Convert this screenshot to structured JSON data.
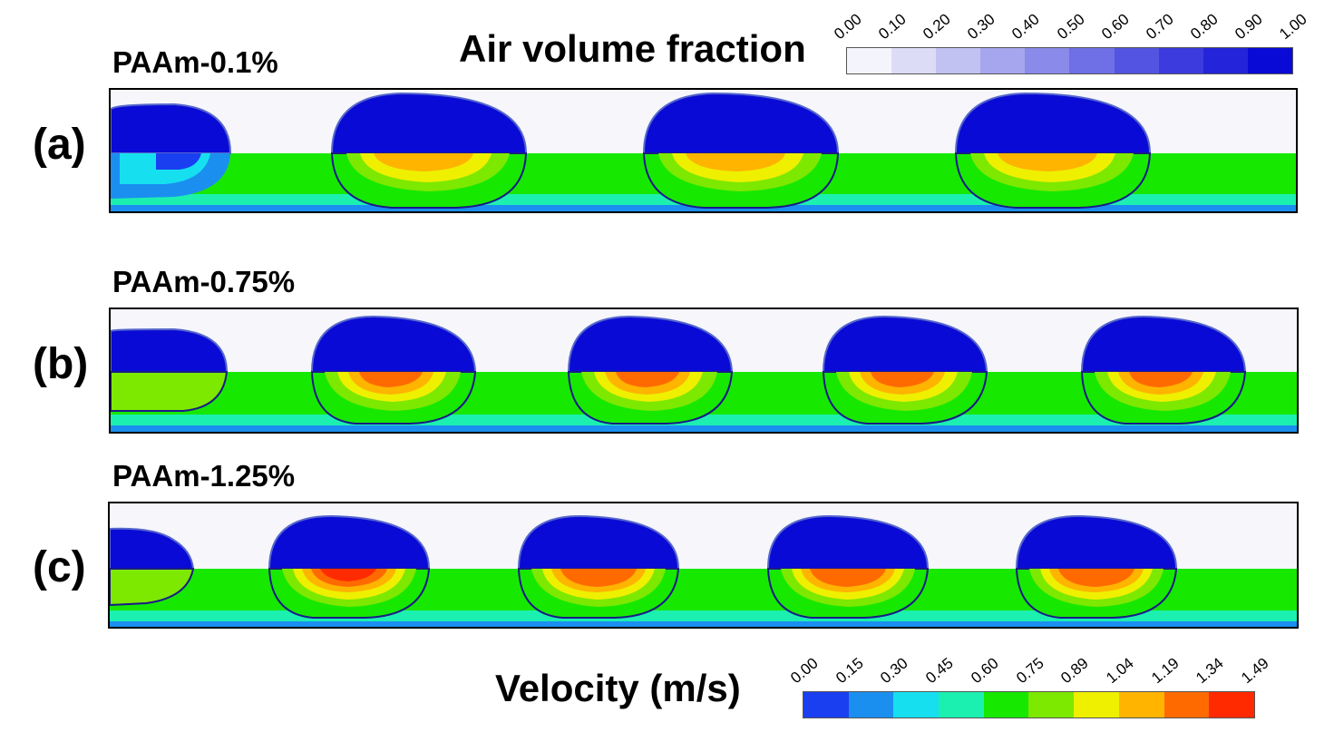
{
  "air_legend": {
    "title": "Air volume fraction",
    "ticks": [
      "0.00",
      "0.10",
      "0.20",
      "0.30",
      "0.40",
      "0.50",
      "0.60",
      "0.70",
      "0.80",
      "0.90",
      "1.00"
    ],
    "colors": [
      "#f4f4fc",
      "#dcdcf6",
      "#c2c2f2",
      "#a6a6ee",
      "#8a8aea",
      "#6f6fe6",
      "#5454e2",
      "#3b3bde",
      "#2424da",
      "#0a0ad6"
    ]
  },
  "velocity_legend": {
    "title": "Velocity (m/s)",
    "ticks": [
      "0.00",
      "0.15",
      "0.30",
      "0.45",
      "0.60",
      "0.75",
      "0.89",
      "1.04",
      "1.19",
      "1.34",
      "1.49"
    ],
    "colors": [
      "#1a3ff0",
      "#1a8ff0",
      "#16e0f0",
      "#1cf0b0",
      "#17e800",
      "#7de800",
      "#eef000",
      "#ffb400",
      "#ff6a00",
      "#ff2a00"
    ]
  },
  "panels": [
    {
      "letter": "(a)",
      "label": "PAAm-0.1%",
      "bubbles": 3
    },
    {
      "letter": "(b)",
      "label": "PAAm-0.75%",
      "bubbles": 4
    },
    {
      "letter": "(c)",
      "label": "PAAm-1.25%",
      "bubbles": 4
    }
  ]
}
